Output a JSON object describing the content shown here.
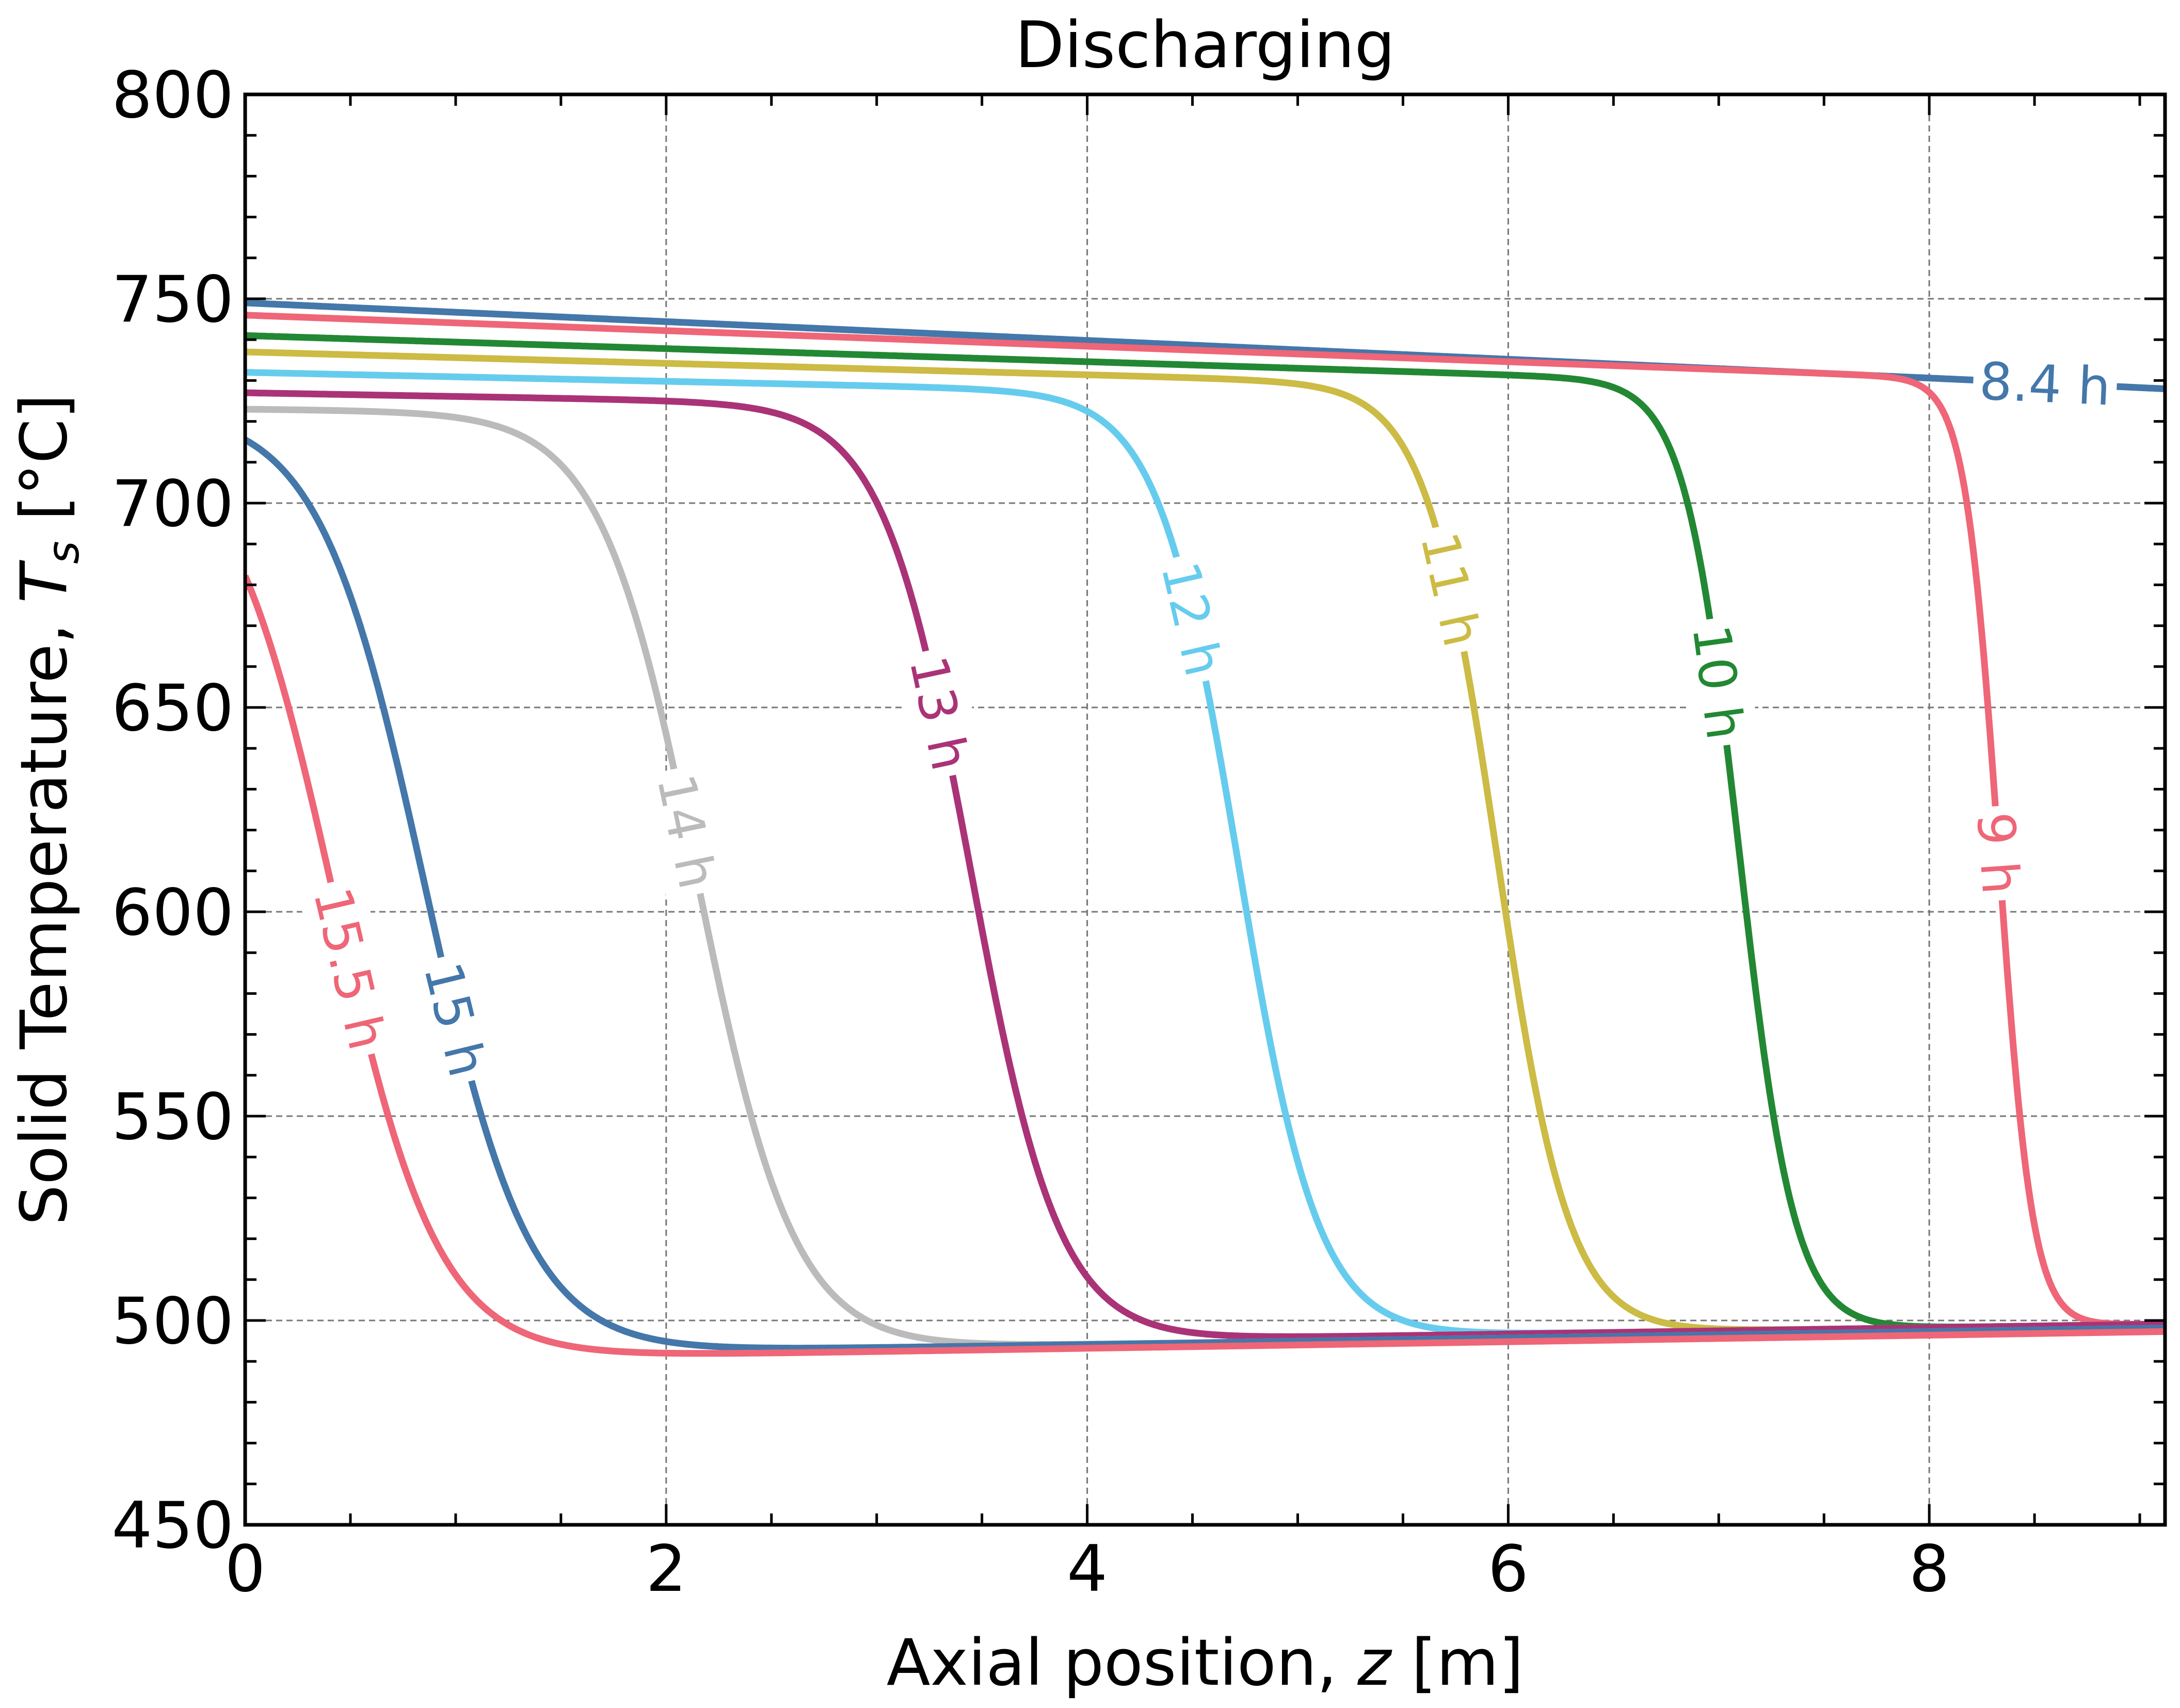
{
  "chart_data": {
    "type": "line",
    "title": "Discharging",
    "xlabel": {
      "prefix": "Axial position, ",
      "var": "z",
      "suffix": " [m]"
    },
    "ylabel": {
      "prefix": "Solid Temperature, ",
      "var": "T",
      "sub": "s",
      "suffix": " [°C]"
    },
    "xlim": [
      0,
      9.12
    ],
    "ylim": [
      450,
      800
    ],
    "xticks": [
      0,
      2,
      4,
      6,
      8
    ],
    "yticks": [
      450,
      500,
      550,
      600,
      650,
      700,
      750,
      800
    ],
    "grid": true,
    "series": [
      {
        "name": "8.4 h",
        "color": "#4477AA",
        "z0": 12.0,
        "w": 0.35,
        "Ttop": 749,
        "topSlope": -2.3,
        "Tbot": 497,
        "botSlope": 0.25,
        "labelZ": 8.55
      },
      {
        "name": "9 h",
        "color": "#EE6677",
        "z0": 8.33,
        "w": 0.08,
        "Ttop": 746,
        "topSlope": -1.9,
        "Tbot": 492,
        "botSlope": 0.78,
        "labelZ": 8.33
      },
      {
        "name": "10 h",
        "color": "#228833",
        "z0": 7.1,
        "w": 0.13,
        "Ttop": 741,
        "topSlope": -1.6,
        "Tbot": 492,
        "botSlope": 0.78,
        "labelZ": 7.0
      },
      {
        "name": "11 h",
        "color": "#CCBB44",
        "z0": 5.95,
        "w": 0.17,
        "Ttop": 737,
        "topSlope": -1.4,
        "Tbot": 492,
        "botSlope": 0.78,
        "labelZ": 5.73
      },
      {
        "name": "12 h",
        "color": "#66CCEE",
        "z0": 4.72,
        "w": 0.19,
        "Ttop": 732,
        "topSlope": -1.1,
        "Tbot": 492,
        "botSlope": 0.78,
        "labelZ": 4.5
      },
      {
        "name": "13 h",
        "color": "#AA3377",
        "z0": 3.45,
        "w": 0.21,
        "Ttop": 727,
        "topSlope": -0.9,
        "Tbot": 492,
        "botSlope": 0.78,
        "labelZ": 3.3
      },
      {
        "name": "14 h",
        "color": "#BBBBBB",
        "z0": 2.15,
        "w": 0.23,
        "Ttop": 723,
        "topSlope": -0.5,
        "Tbot": 491,
        "botSlope": 0.78,
        "labelZ": 2.1
      },
      {
        "name": "15 h",
        "color": "#4477AA",
        "z0": 0.85,
        "w": 0.25,
        "Ttop": 723,
        "topSlope": 0,
        "Tbot": 491,
        "botSlope": 0.78,
        "labelZ": 1.0
      },
      {
        "name": "15.5 h",
        "color": "#EE6677",
        "z0": 0.42,
        "w": 0.25,
        "Ttop": 718,
        "topSlope": 0,
        "Tbot": 490,
        "botSlope": 0.8,
        "labelZ": 0.5
      }
    ]
  }
}
